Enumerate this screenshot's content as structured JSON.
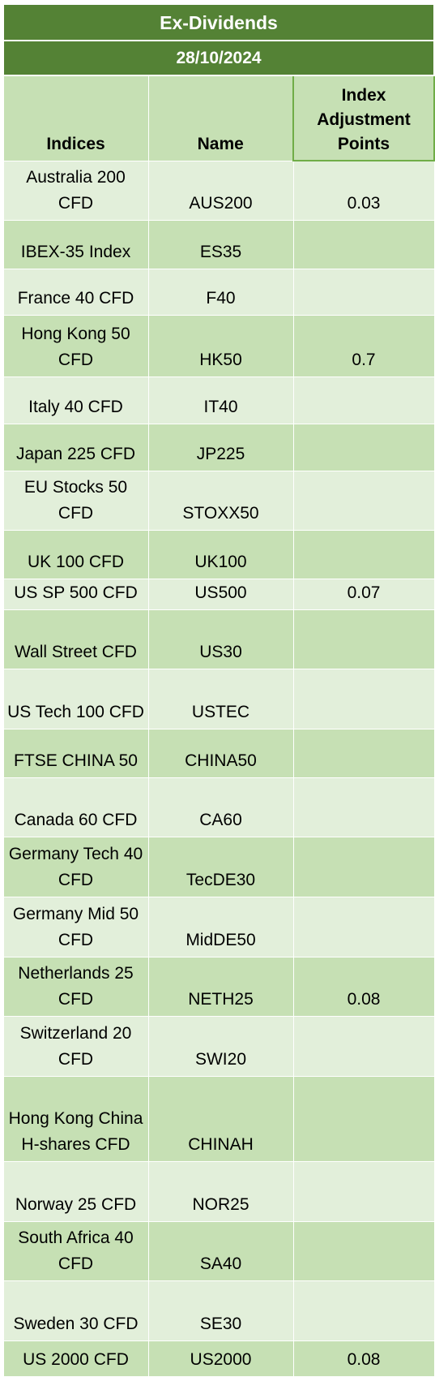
{
  "title": "Ex-Dividends",
  "date": "28/10/2024",
  "table": {
    "headers": [
      "Indices",
      "Name",
      "Index Adjustment Points"
    ],
    "rows": [
      {
        "index": "Australia 200 CFD",
        "name": "AUS200",
        "points": "0.03"
      },
      {
        "index": "IBEX-35 Index",
        "name": "ES35"
      },
      {
        "index": "France 40 CFD",
        "name": "F40"
      },
      {
        "index": "Hong Kong 50 CFD",
        "name": "HK50",
        "points": "0.7"
      },
      {
        "index": "Italy 40 CFD",
        "name": "IT40"
      },
      {
        "index": "Japan 225 CFD",
        "name": "JP225"
      },
      {
        "index": "EU Stocks 50 CFD",
        "name": "STOXX50"
      },
      {
        "index": "UK 100 CFD",
        "name": "UK100"
      },
      {
        "index": "US SP 500 CFD",
        "name": "US500",
        "points": "0.07"
      },
      {
        "index": "Wall Street CFD",
        "name": "US30"
      },
      {
        "index": "US Tech 100 CFD",
        "name": "USTEC"
      },
      {
        "index": "FTSE CHINA 50",
        "name": "CHINA50"
      },
      {
        "index": "Canada 60 CFD",
        "name": "CA60"
      },
      {
        "index": "Germany Tech 40 CFD",
        "name": "TecDE30"
      },
      {
        "index": "Germany Mid 50 CFD",
        "name": "MidDE50"
      },
      {
        "index": "Netherlands 25 CFD",
        "name": "NETH25",
        "points": "0.08"
      },
      {
        "index": "Switzerland 20 CFD",
        "name": "SWI20"
      },
      {
        "index": "Hong Kong China H-shares CFD",
        "name": "CHINAH"
      },
      {
        "index": "Norway 25 CFD",
        "name": "NOR25"
      },
      {
        "index": "South Africa 40 CFD",
        "name": "SA40"
      },
      {
        "index": "Sweden 30 CFD",
        "name": "SE30"
      },
      {
        "index": "US 2000 CFD",
        "name": "US2000",
        "points": "0.08"
      }
    ]
  }
}
